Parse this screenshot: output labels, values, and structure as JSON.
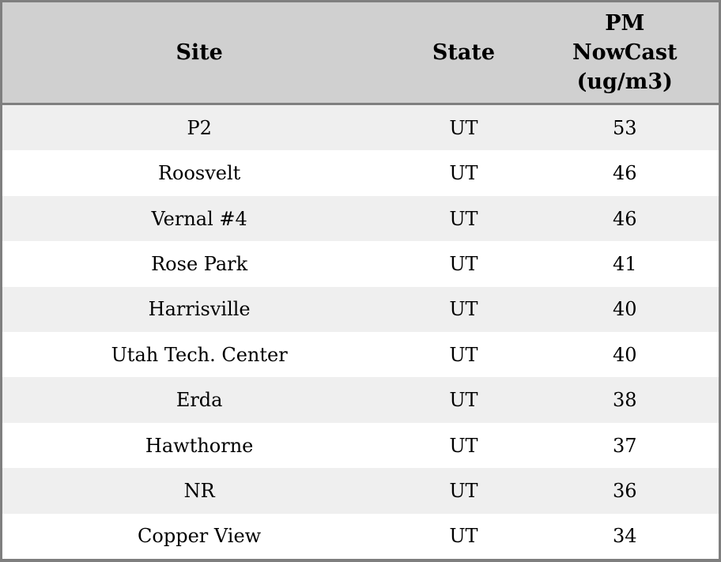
{
  "table": {
    "columns": [
      {
        "key": "site",
        "label": "Site"
      },
      {
        "key": "state",
        "label": "State"
      },
      {
        "key": "pm_nowcast",
        "label": "PM\nNowCast\n(ug/m3)"
      }
    ],
    "rows": [
      {
        "site": "P2",
        "state": "UT",
        "pm_nowcast": "53"
      },
      {
        "site": "Roosvelt",
        "state": "UT",
        "pm_nowcast": "46"
      },
      {
        "site": "Vernal #4",
        "state": "UT",
        "pm_nowcast": "46"
      },
      {
        "site": "Rose Park",
        "state": "UT",
        "pm_nowcast": "41"
      },
      {
        "site": "Harrisville",
        "state": "UT",
        "pm_nowcast": "40"
      },
      {
        "site": "Utah Tech. Center",
        "state": "UT",
        "pm_nowcast": "40"
      },
      {
        "site": "Erda",
        "state": "UT",
        "pm_nowcast": "38"
      },
      {
        "site": "Hawthorne",
        "state": "UT",
        "pm_nowcast": "37"
      },
      {
        "site": "NR",
        "state": "UT",
        "pm_nowcast": "36"
      },
      {
        "site": "Copper View",
        "state": "UT",
        "pm_nowcast": "34"
      }
    ]
  },
  "chart_data": {
    "type": "table",
    "columns": [
      "Site",
      "State",
      "PM NowCast (ug/m3)"
    ],
    "rows": [
      [
        "P2",
        "UT",
        53
      ],
      [
        "Roosvelt",
        "UT",
        46
      ],
      [
        "Vernal #4",
        "UT",
        46
      ],
      [
        "Rose Park",
        "UT",
        41
      ],
      [
        "Harrisville",
        "UT",
        40
      ],
      [
        "Utah Tech. Center",
        "UT",
        40
      ],
      [
        "Erda",
        "UT",
        38
      ],
      [
        "Hawthorne",
        "UT",
        37
      ],
      [
        "NR",
        "UT",
        36
      ],
      [
        "Copper View",
        "UT",
        34
      ]
    ],
    "layout": {
      "header_background": "#d0d0d0",
      "row_alt_background": "#efefef",
      "row_background": "#ffffff",
      "border_color": "#7f7f7f",
      "text_color": "#000000",
      "alignment": "center"
    }
  },
  "colors": {
    "header_bg": "#d0d0d0",
    "row_alt_bg": "#efefef",
    "row_bg": "#ffffff",
    "border": "#7f7f7f",
    "text": "#000000"
  }
}
